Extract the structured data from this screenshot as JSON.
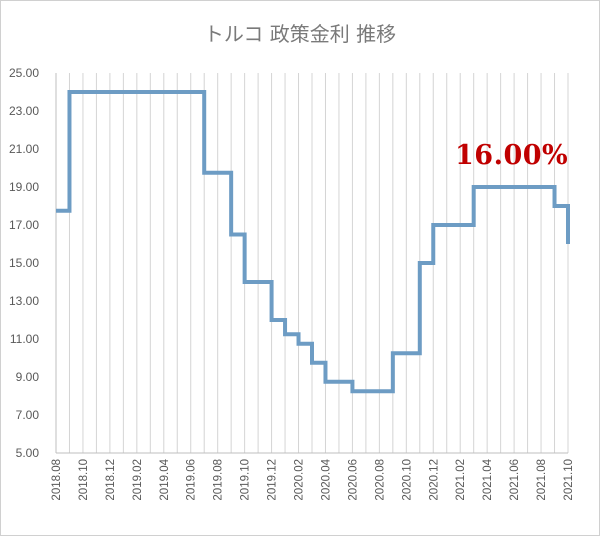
{
  "chart_data": {
    "type": "line",
    "title": "トルコ 政策金利 推移",
    "annotation": "16.00%",
    "line_color": "#6d9cc4",
    "annotation_color": "#c00000",
    "ylim": [
      5,
      25
    ],
    "y_ticks": [
      "5.00",
      "7.00",
      "9.00",
      "11.00",
      "13.00",
      "15.00",
      "17.00",
      "19.00",
      "21.00",
      "23.00",
      "25.00"
    ],
    "x_tick_labels": [
      "2018.08",
      "2018.10",
      "2018.12",
      "2019.02",
      "2019.04",
      "2019.06",
      "2019.08",
      "2019.10",
      "2019.12",
      "2020.02",
      "2020.04",
      "2020.06",
      "2020.08",
      "2020.10",
      "2020.12",
      "2021.02",
      "2021.04",
      "2021.06",
      "2021.08",
      "2021.10"
    ],
    "x": [
      "2018.08",
      "2018.09",
      "2018.10",
      "2018.11",
      "2018.12",
      "2019.01",
      "2019.02",
      "2019.03",
      "2019.04",
      "2019.05",
      "2019.06",
      "2019.07",
      "2019.08",
      "2019.09",
      "2019.10",
      "2019.11",
      "2019.12",
      "2020.01",
      "2020.02",
      "2020.03",
      "2020.04",
      "2020.05",
      "2020.06",
      "2020.07",
      "2020.08",
      "2020.09",
      "2020.10",
      "2020.11",
      "2020.12",
      "2021.01",
      "2021.02",
      "2021.03",
      "2021.04",
      "2021.05",
      "2021.06",
      "2021.07",
      "2021.08",
      "2021.09",
      "2021.10"
    ],
    "series": [
      {
        "values": [
          17.75,
          24,
          24,
          24,
          24,
          24,
          24,
          24,
          24,
          24,
          24,
          19.75,
          19.75,
          16.5,
          14,
          14,
          12,
          11.25,
          10.75,
          9.75,
          8.75,
          8.75,
          8.25,
          8.25,
          8.25,
          10.25,
          10.25,
          15,
          17,
          17,
          17,
          19,
          19,
          19,
          19,
          19,
          19,
          18,
          16
        ]
      }
    ]
  }
}
